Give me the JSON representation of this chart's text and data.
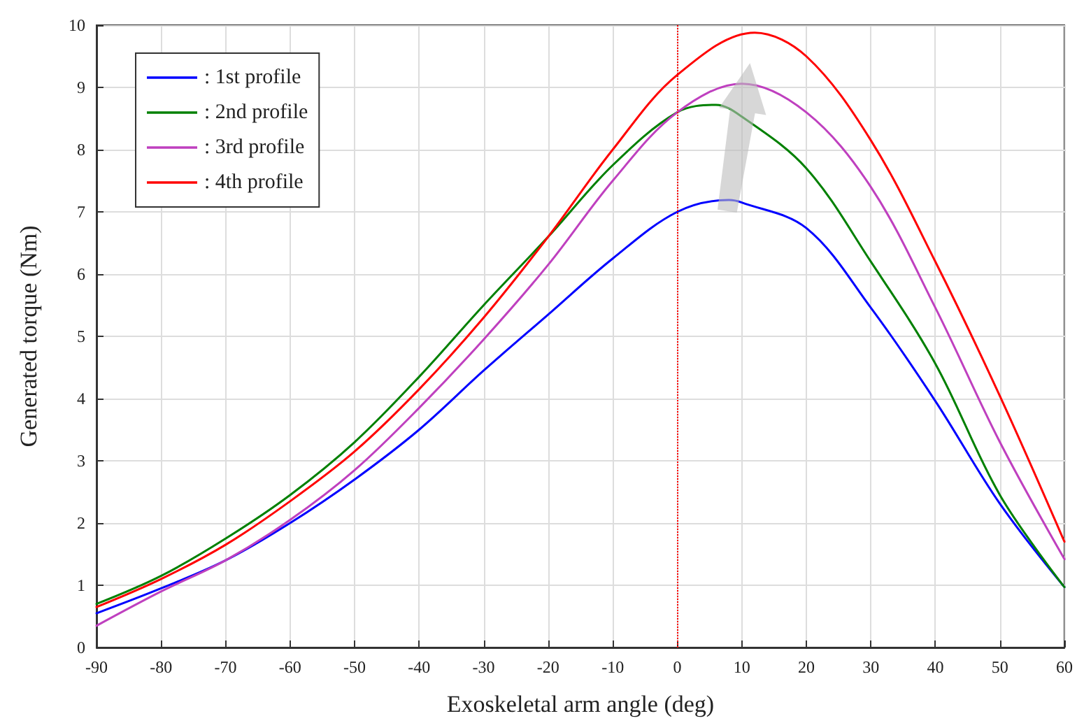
{
  "chart_data": {
    "type": "line",
    "xlabel": "Exoskeletal arm angle (deg)",
    "ylabel": "Generated torque (Nm)",
    "xlim": [
      -90,
      60
    ],
    "xticks": [
      -90,
      -80,
      -70,
      -60,
      -50,
      -40,
      -30,
      -20,
      -10,
      0,
      10,
      20,
      30,
      40,
      50,
      60
    ],
    "ylim": [
      0,
      10
    ],
    "yticks": [
      0,
      1,
      2,
      3,
      4,
      5,
      6,
      7,
      8,
      9,
      10
    ],
    "grid": true,
    "legend": "top left",
    "marker": "none",
    "line_style": "solid",
    "ref_lines": [
      {
        "axis": "x",
        "value": 0,
        "color": "#ff0000",
        "line_style": "dotted"
      }
    ],
    "series": [
      {
        "name": ": 1st profile",
        "color": "#0000ff",
        "x": [
          -90,
          -80,
          -70,
          -60,
          -50,
          -40,
          -30,
          -20,
          -10,
          0,
          8,
          10,
          20,
          30,
          40,
          50,
          60
        ],
        "values": [
          0.55,
          0.95,
          1.4,
          2.0,
          2.7,
          3.5,
          4.45,
          5.35,
          6.25,
          7.0,
          7.19,
          7.15,
          6.74,
          5.46,
          3.96,
          2.31,
          0.97
        ]
      },
      {
        "name": ": 2nd profile",
        "color": "#008000",
        "x": [
          -90,
          -80,
          -70,
          -60,
          -50,
          -40,
          -30,
          -20,
          -10,
          0,
          6,
          10,
          20,
          30,
          40,
          50,
          60
        ],
        "values": [
          0.7,
          1.15,
          1.75,
          2.45,
          3.3,
          4.35,
          5.5,
          6.6,
          7.75,
          8.6,
          8.72,
          8.53,
          7.7,
          6.2,
          4.56,
          2.45,
          0.97
        ]
      },
      {
        "name": ": 3rd profile",
        "color": "#bf40bf",
        "x": [
          -90,
          -80,
          -70,
          -60,
          -50,
          -40,
          -30,
          -20,
          -10,
          0,
          10,
          20,
          30,
          40,
          50,
          60
        ],
        "values": [
          0.35,
          0.9,
          1.4,
          2.05,
          2.85,
          3.85,
          4.95,
          6.15,
          7.5,
          8.6,
          9.06,
          8.6,
          7.4,
          5.46,
          3.3,
          1.42
        ]
      },
      {
        "name": ": 4th profile",
        "color": "#ff0000",
        "x": [
          -90,
          -80,
          -70,
          -60,
          -50,
          -40,
          -30,
          -20,
          -10,
          0,
          12,
          20,
          30,
          40,
          50,
          60
        ],
        "values": [
          0.65,
          1.1,
          1.65,
          2.35,
          3.15,
          4.15,
          5.3,
          6.6,
          8.0,
          9.2,
          9.88,
          9.5,
          8.15,
          6.2,
          4.04,
          1.7
        ]
      }
    ]
  }
}
